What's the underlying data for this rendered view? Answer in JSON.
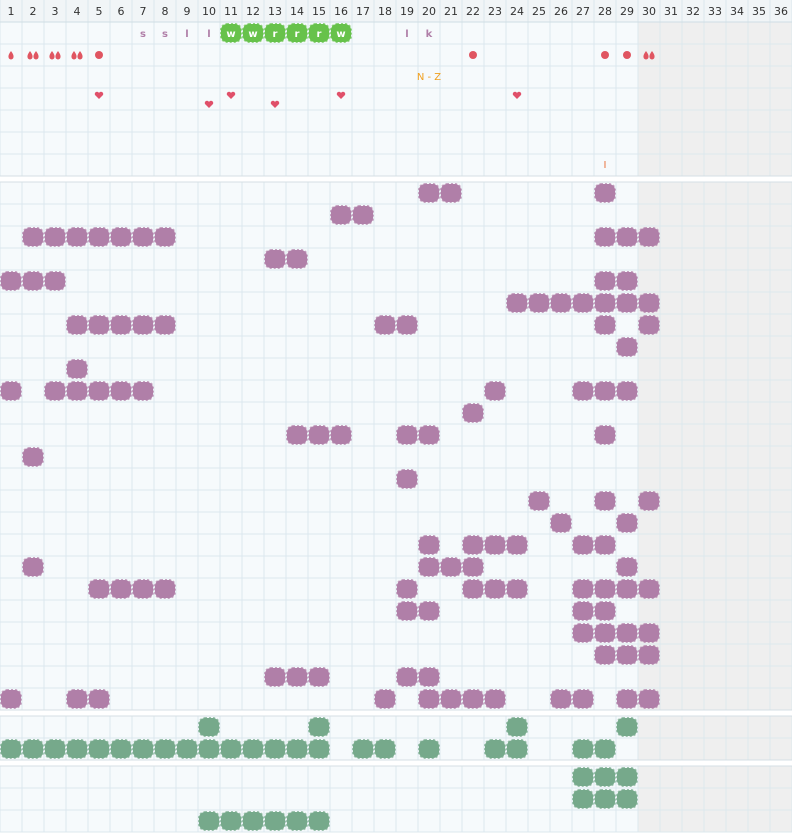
{
  "header": {
    "columns": [
      1,
      2,
      3,
      4,
      5,
      6,
      7,
      8,
      9,
      10,
      11,
      12,
      13,
      14,
      15,
      16,
      17,
      18,
      19,
      20,
      21,
      22,
      23,
      24,
      25,
      26,
      27,
      28,
      29,
      30,
      31,
      32,
      33,
      34,
      35,
      36
    ]
  },
  "tags": [
    "s",
    "s",
    "l",
    "l",
    "w",
    "w",
    "r",
    "r",
    "r",
    "w",
    "l",
    "k"
  ],
  "range_label": "N - Z",
  "marker_label": "I"
}
